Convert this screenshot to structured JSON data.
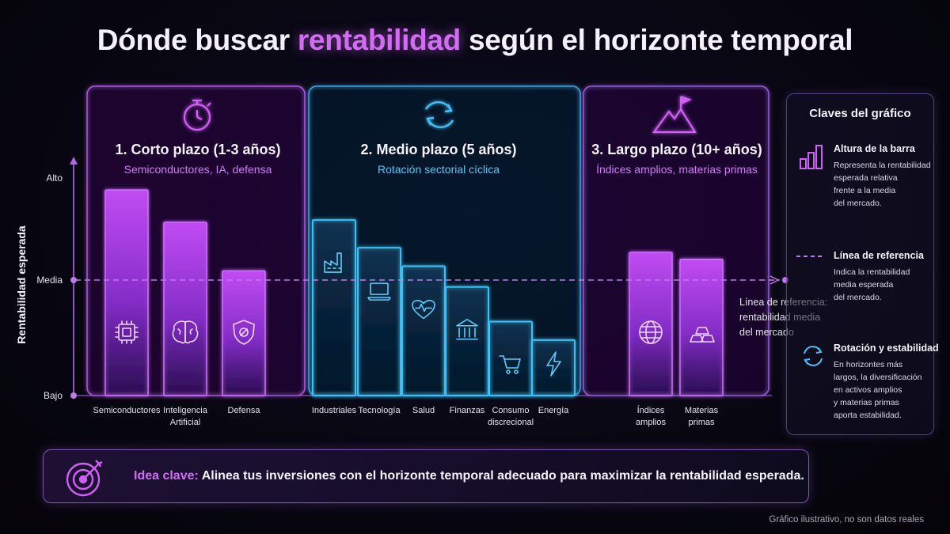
{
  "title": {
    "prefix": "Dónde buscar",
    "highlight": "rentabilidad",
    "suffix": "según el horizonte temporal"
  },
  "panels": [
    {
      "title": "1. Corto plazo (1-3 años)",
      "subtitle": "Semiconductores, IA, defensa",
      "icon": "stopwatch-icon",
      "color": "#c75cf0"
    },
    {
      "title": "2. Medio plazo (5 años)",
      "subtitle": "Rotación sectorial cíclica",
      "icon": "refresh-cycle-icon",
      "color": "#3fb8f0"
    },
    {
      "title": "3. Largo plazo (10+ años)",
      "subtitle": "Índices amplios, materias primas",
      "icon": "mountain-flag-icon",
      "color": "#b86cf0"
    }
  ],
  "chart_data": {
    "type": "bar",
    "ylabel": "Rentabilidad esperada",
    "yticks": [
      "Bajo",
      "Media",
      "Alto"
    ],
    "ylim": [
      0,
      100
    ],
    "reference_value": 50,
    "reference_label": "Línea de referencia:\nrentabilidad media\ndel mercado",
    "grid": false,
    "series": [
      {
        "group": "Corto plazo",
        "color": "#c14cf0",
        "categories": [
          "Semiconductores",
          "Inteligencia\nArtificial",
          "Defensa"
        ],
        "values": [
          89,
          75,
          54
        ],
        "icons": [
          "chip-icon",
          "brain-icon",
          "shield-icon"
        ]
      },
      {
        "group": "Medio plazo",
        "color": "#35b6f2",
        "categories": [
          "Industriales",
          "Tecnología",
          "Salud",
          "Finanzas",
          "Consumo\ndiscrecional",
          "Energía"
        ],
        "values": [
          76,
          64,
          56,
          47,
          32,
          24
        ],
        "icons": [
          "factory-icon",
          "laptop-icon",
          "heart-pulse-icon",
          "bank-icon",
          "cart-icon",
          "lightning-icon"
        ]
      },
      {
        "group": "Largo plazo",
        "color": "#b14ef0",
        "categories": [
          "Índices\namplios",
          "Materias\nprimas"
        ],
        "values": [
          62,
          59
        ],
        "icons": [
          "globe-icon",
          "gold-bars-icon"
        ]
      }
    ]
  },
  "legend": {
    "title": "Claves del gráfico",
    "items": [
      {
        "icon": "bar-chart-icon",
        "title": "Altura de la barra",
        "desc": "Representa la rentabilidad\nesperada relativa\nfrente a la media\ndel mercado."
      },
      {
        "icon": "dashed-line-icon",
        "title": "Línea de referencia",
        "desc": "Indica la rentabilidad\nmedia esperada\ndel mercado."
      },
      {
        "icon": "refresh-icon",
        "title": "Rotación y estabilidad",
        "desc": "En horizontes más\nlargos, la diversificación\nen activos amplios\ny materias primas\naporta estabilidad."
      }
    ]
  },
  "key_idea": {
    "icon": "target-arrow-icon",
    "label": "Idea clave:",
    "text": "Alinea tus inversiones con el horizonte temporal adecuado para maximizar la rentabilidad esperada."
  },
  "footnote": "Gráfico ilustrativo, no son datos reales",
  "colors": {
    "purple": "#c75cf0",
    "blue": "#3fb8f0",
    "accent": "#d36cf5"
  }
}
